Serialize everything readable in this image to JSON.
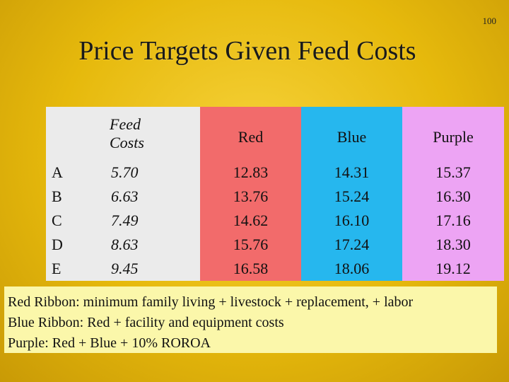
{
  "slide_number": "100",
  "title": "Price Targets Given Feed Costs",
  "table": {
    "headers": {
      "row_label": "",
      "feed_line1": "Feed",
      "feed_line2": "Costs",
      "red": "Red",
      "blue": "Blue",
      "purple": "Purple"
    },
    "rows": [
      {
        "label": "A",
        "feed": "5.70",
        "red": "12.83",
        "blue": "14.31",
        "purple": "15.37"
      },
      {
        "label": "B",
        "feed": "6.63",
        "red": "13.76",
        "blue": "15.24",
        "purple": "16.30"
      },
      {
        "label": "C",
        "feed": "7.49",
        "red": "14.62",
        "blue": "16.10",
        "purple": "17.16"
      },
      {
        "label": "D",
        "feed": "8.63",
        "red": "15.76",
        "blue": "17.24",
        "purple": "18.30"
      },
      {
        "label": "E",
        "feed": "9.45",
        "red": "16.58",
        "blue": "18.06",
        "purple": "19.12"
      }
    ]
  },
  "legend": {
    "red_line": "Red Ribbon: minimum family living + livestock + replacement, + labor",
    "blue_line": "Blue Ribbon:  Red + facility and equipment costs",
    "purple_line": "Purple:  Red + Blue + 10% ROROA"
  },
  "colors": {
    "background": "#e6b90c",
    "gray_column": "#ebebeb",
    "red_column": "#f26b6b",
    "blue_column": "#26b7ee",
    "purple_column": "#eda4f4",
    "legend_box": "#fbf7aa"
  }
}
